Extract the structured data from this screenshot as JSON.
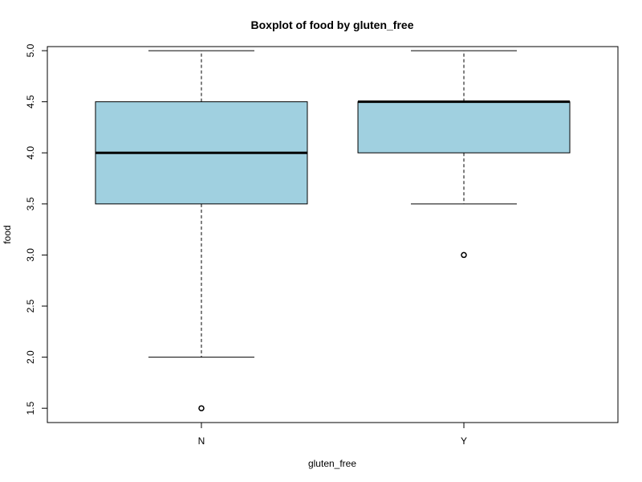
{
  "chart_data": {
    "type": "boxplot",
    "title": "Boxplot of food by gluten_free",
    "xlabel": "gluten_free",
    "ylabel": "food",
    "categories": [
      "N",
      "Y"
    ],
    "yticks": [
      "1.5",
      "2.0",
      "2.5",
      "3.0",
      "3.5",
      "4.0",
      "4.5",
      "5.0"
    ],
    "ylim": [
      1.36,
      5.04
    ],
    "box_color": "#a0d0e0",
    "grid": false,
    "boxes": [
      {
        "category": "N",
        "whisker_low": 2.0,
        "q1": 3.5,
        "median": 4.0,
        "q3": 4.5,
        "whisker_high": 5.0,
        "outliers": [
          1.5
        ]
      },
      {
        "category": "Y",
        "whisker_low": 3.5,
        "q1": 4.0,
        "median": 4.5,
        "q3": 4.5,
        "whisker_high": 5.0,
        "outliers": [
          3.0
        ]
      }
    ]
  }
}
